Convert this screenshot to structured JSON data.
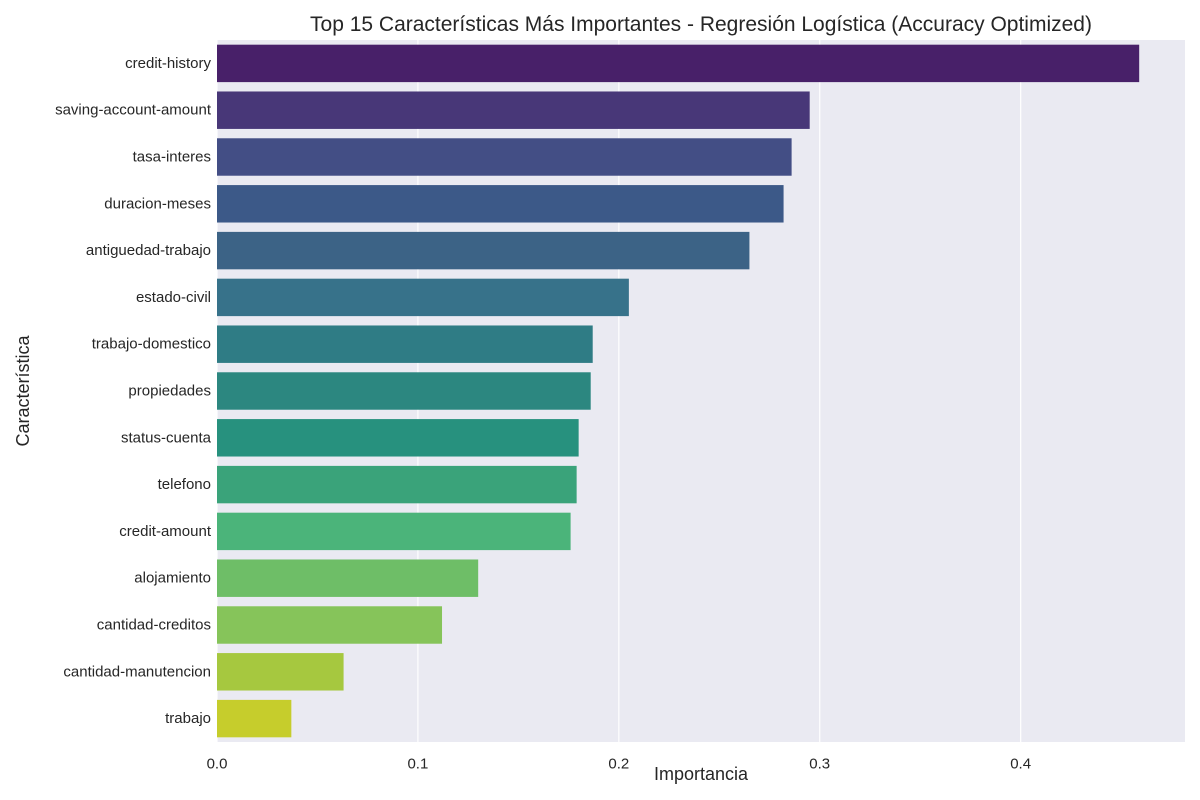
{
  "chart_data": {
    "type": "bar",
    "orientation": "horizontal",
    "title": "Top 15 Características Más Importantes - Regresión Logística (Accuracy Optimized)",
    "xlabel": "Importancia",
    "ylabel": "Característica",
    "categories": [
      "credit-history",
      "saving-account-amount",
      "tasa-interes",
      "duracion-meses",
      "antiguedad-trabajo",
      "estado-civil",
      "trabajo-domestico",
      "propiedades",
      "status-cuenta",
      "telefono",
      "credit-amount",
      "alojamiento",
      "cantidad-creditos",
      "cantidad-manutencion",
      "trabajo"
    ],
    "values": [
      0.459,
      0.295,
      0.286,
      0.282,
      0.265,
      0.205,
      0.187,
      0.186,
      0.18,
      0.179,
      0.176,
      0.13,
      0.112,
      0.063,
      0.037
    ],
    "xlim": [
      0,
      0.4818
    ],
    "xticks": [
      0.0,
      0.1,
      0.2,
      0.3,
      0.4
    ],
    "xtick_labels": [
      "0.0",
      "0.1",
      "0.2",
      "0.3",
      "0.4"
    ],
    "grid": true,
    "palette": "viridis",
    "colors": [
      "#482069",
      "#483778",
      "#434e85",
      "#3c5988",
      "#3c6386",
      "#37728a",
      "#2f7c85",
      "#2c8780",
      "#27917e",
      "#3aa37a",
      "#4bb47a",
      "#6ebe67",
      "#86c45a",
      "#a6c83f",
      "#c6cd2c"
    ],
    "plot_background": "#eaeaf2",
    "grid_color": "#ffffff"
  }
}
